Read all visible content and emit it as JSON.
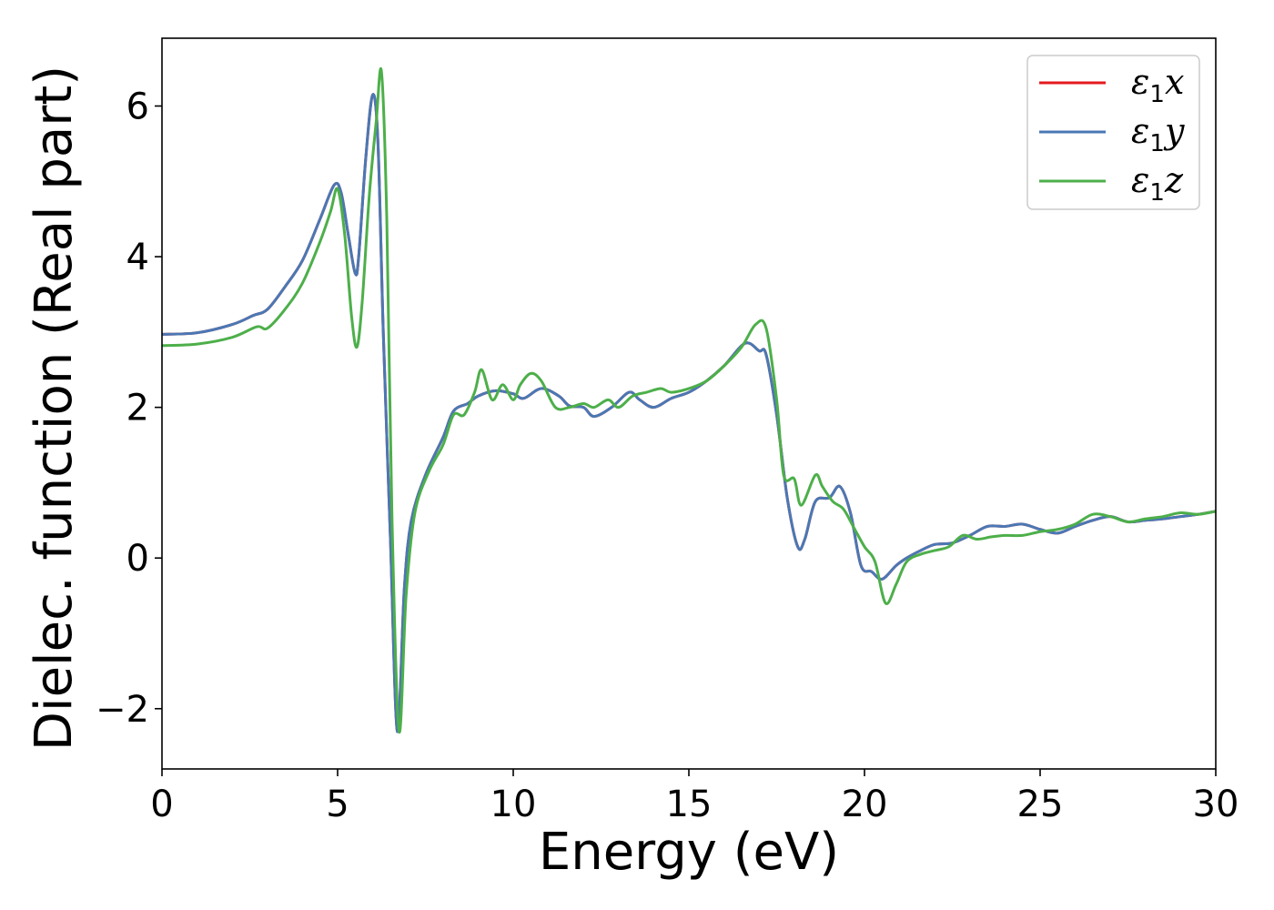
{
  "chart_data": {
    "type": "line",
    "title": "",
    "xlabel": "Energy (eV)",
    "ylabel": "Dielec. function (Real part)",
    "xlim": [
      0,
      30
    ],
    "ylim": [
      -2.8,
      6.9
    ],
    "xticks": [
      0,
      5,
      10,
      15,
      20,
      25,
      30
    ],
    "xtick_labels": [
      "0",
      "5",
      "10",
      "15",
      "20",
      "25",
      "30"
    ],
    "yticks": [
      -2,
      0,
      2,
      4,
      6
    ],
    "ytick_labels": [
      "−2",
      "0",
      "2",
      "4",
      "6"
    ],
    "grid": false,
    "legend_position": "top-right",
    "series": [
      {
        "name": "ε1x",
        "legend_symbol": "ε",
        "legend_subscript": "1",
        "legend_suffix": "x",
        "color": "#e41a1c",
        "x": [
          0,
          1,
          2,
          2.6,
          3,
          3.5,
          4,
          4.5,
          4.9,
          5.1,
          5.3,
          5.5,
          5.6,
          5.8,
          6.0,
          6.15,
          6.3,
          6.5,
          6.7,
          6.9,
          7.1,
          7.5,
          8.0,
          8.3,
          8.7,
          9.0,
          9.5,
          10.0,
          10.3,
          10.8,
          11.3,
          11.6,
          12.0,
          12.3,
          12.8,
          13.3,
          13.6,
          14.0,
          14.5,
          15.0,
          15.5,
          16.0,
          16.6,
          17.0,
          17.2,
          17.5,
          17.8,
          18.1,
          18.3,
          18.6,
          19.0,
          19.3,
          19.6,
          19.9,
          20.2,
          20.5,
          20.9,
          21.2,
          21.6,
          22.0,
          22.5,
          23.0,
          23.5,
          24.0,
          24.5,
          25.0,
          25.5,
          26.0,
          26.5,
          27.0,
          27.5,
          28.0,
          28.5,
          29.0,
          29.5,
          30.0
        ],
        "y": [
          2.97,
          2.99,
          3.1,
          3.22,
          3.3,
          3.6,
          3.95,
          4.5,
          4.95,
          4.85,
          4.3,
          3.78,
          4.0,
          5.3,
          6.15,
          5.5,
          3.0,
          0.3,
          -2.3,
          -0.4,
          0.5,
          1.1,
          1.6,
          1.95,
          2.05,
          2.15,
          2.22,
          2.18,
          2.12,
          2.25,
          2.15,
          2.02,
          2.0,
          1.88,
          2.0,
          2.2,
          2.1,
          2.0,
          2.12,
          2.2,
          2.35,
          2.55,
          2.85,
          2.75,
          2.7,
          1.9,
          0.8,
          0.15,
          0.25,
          0.75,
          0.8,
          0.95,
          0.6,
          -0.1,
          -0.18,
          -0.28,
          -0.1,
          0.0,
          0.1,
          0.18,
          0.2,
          0.3,
          0.42,
          0.42,
          0.45,
          0.38,
          0.33,
          0.42,
          0.5,
          0.55,
          0.48,
          0.5,
          0.52,
          0.55,
          0.58,
          0.62
        ]
      },
      {
        "name": "ε1y",
        "legend_symbol": "ε",
        "legend_subscript": "1",
        "legend_suffix": "y",
        "color": "#4a78b4",
        "x": [
          0,
          1,
          2,
          2.6,
          3,
          3.5,
          4,
          4.5,
          4.9,
          5.1,
          5.3,
          5.5,
          5.6,
          5.8,
          6.0,
          6.15,
          6.3,
          6.5,
          6.7,
          6.9,
          7.1,
          7.5,
          8.0,
          8.3,
          8.7,
          9.0,
          9.5,
          10.0,
          10.3,
          10.8,
          11.3,
          11.6,
          12.0,
          12.3,
          12.8,
          13.3,
          13.6,
          14.0,
          14.5,
          15.0,
          15.5,
          16.0,
          16.6,
          17.0,
          17.2,
          17.5,
          17.8,
          18.1,
          18.3,
          18.6,
          19.0,
          19.3,
          19.6,
          19.9,
          20.2,
          20.5,
          20.9,
          21.2,
          21.6,
          22.0,
          22.5,
          23.0,
          23.5,
          24.0,
          24.5,
          25.0,
          25.5,
          26.0,
          26.5,
          27.0,
          27.5,
          28.0,
          28.5,
          29.0,
          29.5,
          30.0
        ],
        "y": [
          2.97,
          2.99,
          3.1,
          3.22,
          3.3,
          3.6,
          3.95,
          4.5,
          4.95,
          4.85,
          4.3,
          3.78,
          4.0,
          5.3,
          6.15,
          5.5,
          3.0,
          0.3,
          -2.3,
          -0.4,
          0.5,
          1.1,
          1.6,
          1.95,
          2.05,
          2.15,
          2.22,
          2.18,
          2.12,
          2.25,
          2.15,
          2.02,
          2.0,
          1.88,
          2.0,
          2.2,
          2.1,
          2.0,
          2.12,
          2.2,
          2.35,
          2.55,
          2.85,
          2.75,
          2.7,
          1.9,
          0.8,
          0.15,
          0.25,
          0.75,
          0.8,
          0.95,
          0.6,
          -0.1,
          -0.18,
          -0.28,
          -0.1,
          0.0,
          0.1,
          0.18,
          0.2,
          0.3,
          0.42,
          0.42,
          0.45,
          0.38,
          0.33,
          0.42,
          0.5,
          0.55,
          0.48,
          0.5,
          0.52,
          0.55,
          0.58,
          0.62
        ]
      },
      {
        "name": "ε1z",
        "legend_symbol": "ε",
        "legend_subscript": "1",
        "legend_suffix": "z",
        "color": "#4daf4a",
        "x": [
          0,
          1,
          2,
          2.7,
          3.0,
          3.5,
          4.0,
          4.5,
          4.8,
          5.0,
          5.2,
          5.4,
          5.55,
          5.7,
          5.9,
          6.1,
          6.25,
          6.4,
          6.55,
          6.75,
          6.95,
          7.2,
          7.6,
          8.0,
          8.3,
          8.6,
          8.9,
          9.1,
          9.4,
          9.7,
          10.0,
          10.2,
          10.5,
          10.8,
          11.2,
          11.6,
          12.0,
          12.3,
          12.7,
          13.0,
          13.4,
          13.8,
          14.2,
          14.5,
          15.0,
          15.5,
          16.0,
          16.5,
          16.9,
          17.2,
          17.5,
          17.7,
          18.0,
          18.2,
          18.6,
          18.8,
          19.1,
          19.4,
          19.7,
          20.0,
          20.3,
          20.6,
          20.9,
          21.2,
          21.6,
          22.0,
          22.4,
          22.8,
          23.2,
          23.6,
          24.0,
          24.5,
          25.0,
          25.5,
          26.0,
          26.5,
          27.0,
          27.5,
          28.0,
          28.5,
          29.0,
          29.5,
          30.0
        ],
        "y": [
          2.82,
          2.84,
          2.93,
          3.07,
          3.05,
          3.3,
          3.65,
          4.2,
          4.6,
          4.9,
          4.3,
          3.2,
          2.8,
          3.4,
          4.8,
          5.8,
          6.45,
          4.5,
          0.5,
          -2.3,
          -0.5,
          0.6,
          1.15,
          1.5,
          1.9,
          1.9,
          2.2,
          2.5,
          2.1,
          2.3,
          2.1,
          2.3,
          2.45,
          2.35,
          2.0,
          2.0,
          2.05,
          2.0,
          2.1,
          2.0,
          2.15,
          2.2,
          2.25,
          2.2,
          2.25,
          2.35,
          2.55,
          2.8,
          3.1,
          3.05,
          2.1,
          1.1,
          1.05,
          0.7,
          1.1,
          0.95,
          0.75,
          0.65,
          0.4,
          0.15,
          -0.05,
          -0.6,
          -0.35,
          -0.05,
          0.05,
          0.1,
          0.15,
          0.3,
          0.25,
          0.28,
          0.3,
          0.3,
          0.35,
          0.38,
          0.45,
          0.58,
          0.55,
          0.48,
          0.52,
          0.55,
          0.6,
          0.58,
          0.62
        ]
      }
    ]
  }
}
